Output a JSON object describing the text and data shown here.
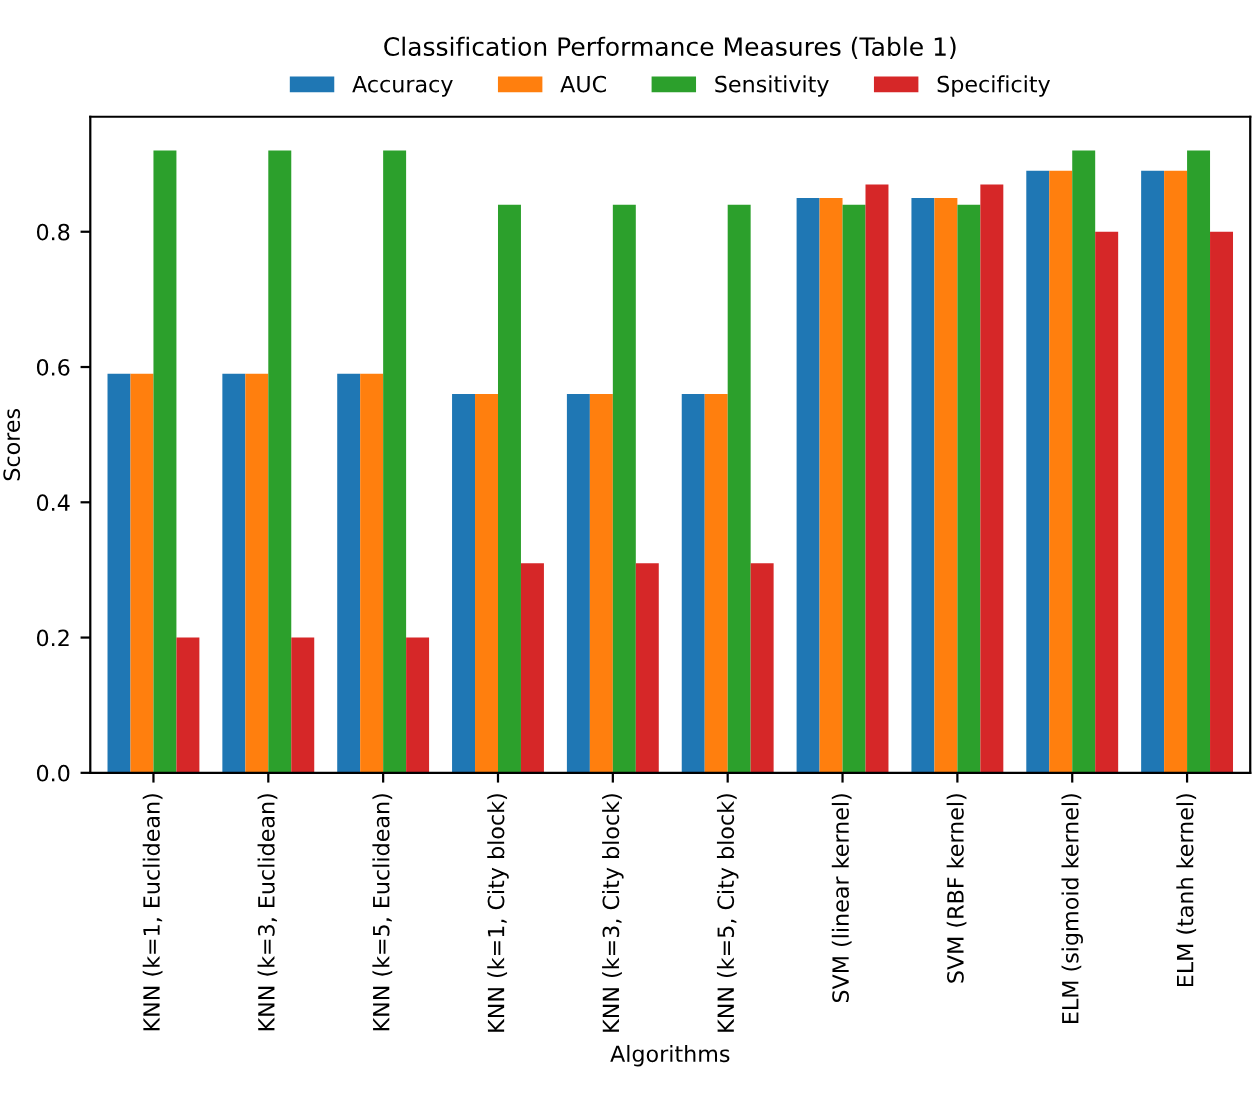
{
  "chart_data": {
    "type": "bar",
    "title": "Classification Performance Measures (Table 1)",
    "xlabel": "Algorithms",
    "ylabel": "Scores",
    "categories": [
      "KNN (k=1, Euclidean)",
      "KNN (k=3, Euclidean)",
      "KNN (k=5, Euclidean)",
      "KNN (k=1, City block)",
      "KNN (k=3, City block)",
      "KNN (k=5, City block)",
      "SVM (linear kernel)",
      "SVM (RBF kernel)",
      "ELM (sigmoid kernel)",
      "ELM (tanh kernel)"
    ],
    "series": [
      {
        "name": "Accuracy",
        "color": "#1f77b4",
        "values": [
          0.59,
          0.59,
          0.59,
          0.56,
          0.56,
          0.56,
          0.85,
          0.85,
          0.89,
          0.89
        ]
      },
      {
        "name": "AUC",
        "color": "#ff7f0e",
        "values": [
          0.59,
          0.59,
          0.59,
          0.56,
          0.56,
          0.56,
          0.85,
          0.85,
          0.89,
          0.89
        ]
      },
      {
        "name": "Sensitivity",
        "color": "#2ca02c",
        "values": [
          0.92,
          0.92,
          0.92,
          0.84,
          0.84,
          0.84,
          0.84,
          0.84,
          0.92,
          0.92
        ]
      },
      {
        "name": "Specificity",
        "color": "#d62728",
        "values": [
          0.2,
          0.2,
          0.2,
          0.31,
          0.31,
          0.31,
          0.87,
          0.87,
          0.8,
          0.8
        ]
      }
    ],
    "ylim": [
      0,
      0.97
    ],
    "yticks": [
      {
        "value": 0,
        "label": "0.0"
      },
      0.2,
      0.4,
      0.6,
      0.8
    ],
    "grid": false,
    "legend": "top"
  }
}
